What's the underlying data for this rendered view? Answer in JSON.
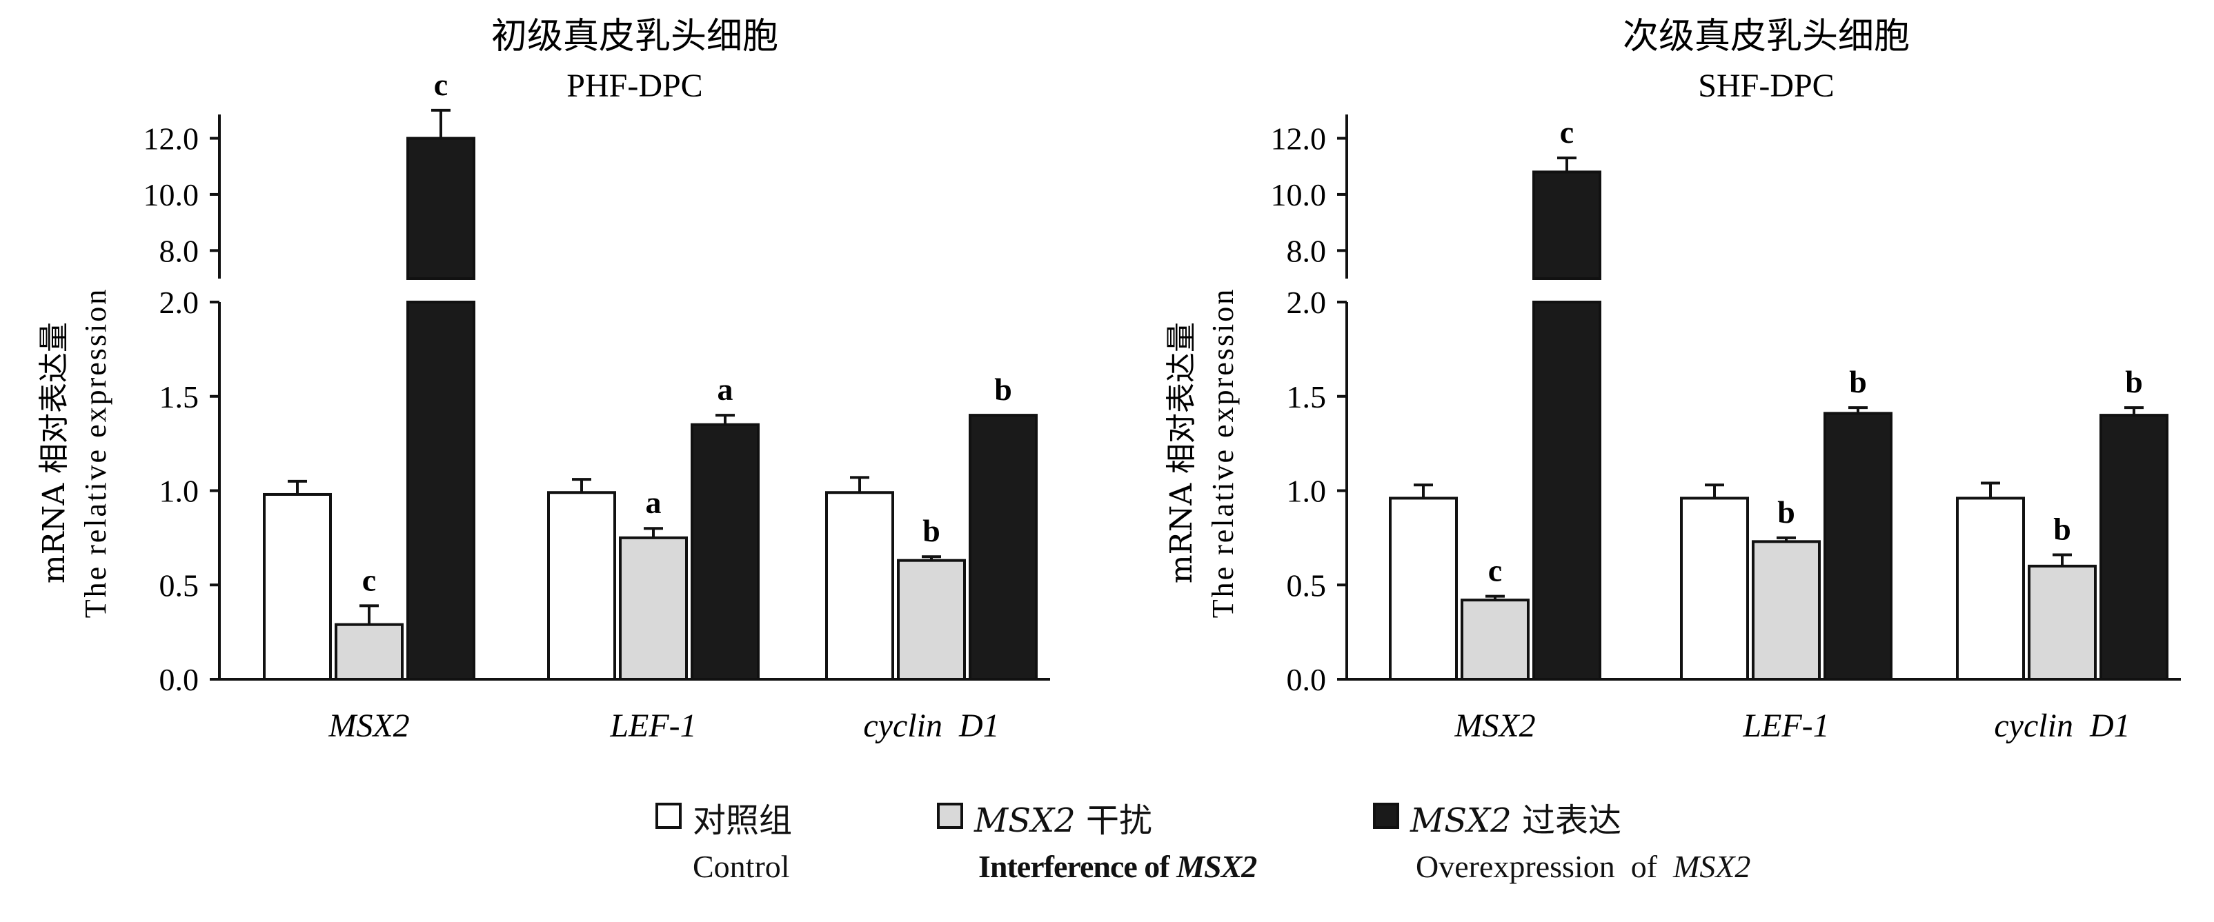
{
  "chart_data": [
    {
      "type": "bar",
      "title": "初级真皮乳头细胞",
      "subtitle": "PHF-DPC",
      "ylabel": "mRNA 相对表达量",
      "ylabel_en": "The relative expression",
      "categories": [
        "MSX2",
        "LEF-1",
        "cyclin  D1"
      ],
      "y_axis_break": true,
      "ylim_lower": [
        0,
        2.0
      ],
      "ylim_upper": [
        7.0,
        12.8
      ],
      "yticks_lower": [
        "0.0",
        "0.5",
        "1.0",
        "1.5",
        "2.0"
      ],
      "yticks_upper": [
        "8.0",
        "10.0",
        "12.0"
      ],
      "series": [
        {
          "name": "对照组",
          "values": [
            0.98,
            0.99,
            0.99
          ],
          "errors": [
            0.07,
            0.07,
            0.08
          ],
          "labels": [
            "",
            "",
            ""
          ]
        },
        {
          "name": "MSX2 干扰",
          "values": [
            0.29,
            0.75,
            0.63
          ],
          "errors": [
            0.1,
            0.05,
            0.02
          ],
          "labels": [
            "c",
            "a",
            "b"
          ]
        },
        {
          "name": "MSX2 过表达",
          "values": [
            12.0,
            1.35,
            1.4
          ],
          "errors": [
            1.0,
            0.05,
            0.0
          ],
          "labels": [
            "c",
            "a",
            "b"
          ]
        }
      ]
    },
    {
      "type": "bar",
      "title": "次级真皮乳头细胞",
      "subtitle": "SHF-DPC",
      "ylabel": "mRNA 相对表达量",
      "ylabel_en": "The relative expression",
      "categories": [
        "MSX2",
        "LEF-1",
        "cyclin  D1"
      ],
      "y_axis_break": true,
      "ylim_lower": [
        0,
        2.0
      ],
      "ylim_upper": [
        7.0,
        12.8
      ],
      "yticks_lower": [
        "0.0",
        "0.5",
        "1.0",
        "1.5",
        "2.0"
      ],
      "yticks_upper": [
        "8.0",
        "10.0",
        "12.0"
      ],
      "series": [
        {
          "name": "对照组",
          "values": [
            0.96,
            0.96,
            0.96
          ],
          "errors": [
            0.07,
            0.07,
            0.08
          ],
          "labels": [
            "",
            "",
            ""
          ]
        },
        {
          "name": "MSX2 干扰",
          "values": [
            0.42,
            0.73,
            0.6
          ],
          "errors": [
            0.02,
            0.02,
            0.06
          ],
          "labels": [
            "c",
            "b",
            "b"
          ]
        },
        {
          "name": "MSX2 过表达",
          "values": [
            10.8,
            1.41,
            1.4
          ],
          "errors": [
            0.5,
            0.03,
            0.04
          ],
          "labels": [
            "c",
            "b",
            "b"
          ]
        }
      ]
    }
  ],
  "legend": [
    {
      "zh": "对照组",
      "zh_italic": "",
      "en": "Control",
      "en_italic": "",
      "en_bold": false,
      "fill": "#ffffff"
    },
    {
      "zh": "干扰",
      "zh_italic": "MSX2 ",
      "en": "Interference of ",
      "en_italic": "MSX2",
      "en_bold": true,
      "fill": "#d9d9d9"
    },
    {
      "zh": "过表达",
      "zh_italic": "MSX2 ",
      "en": "Overexpression  of  ",
      "en_italic": "MSX2",
      "en_bold": false,
      "fill": "#1a1a1a"
    }
  ],
  "colors": {
    "control": "#ffffff",
    "interference": "#d9d9d9",
    "overexpression": "#1a1a1a",
    "axis": "#111111"
  }
}
